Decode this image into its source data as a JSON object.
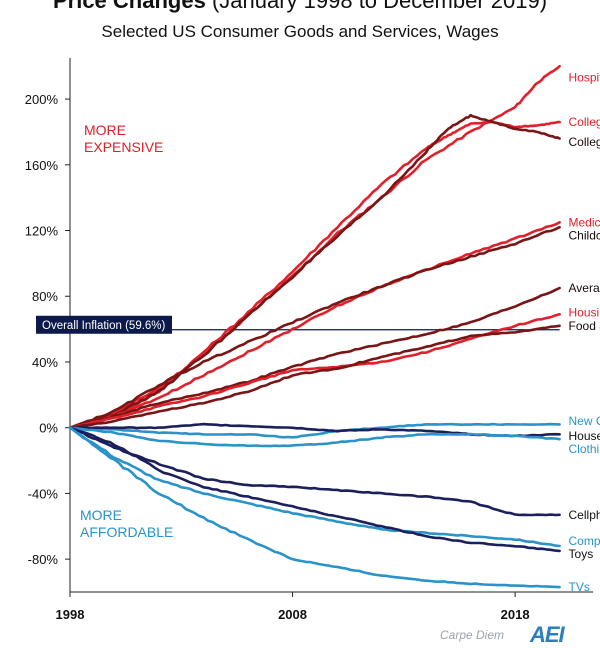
{
  "header": {
    "title_main": "Price Changes",
    "title_paren": "(January 1998 to December 2019)",
    "subtitle": "Selected US Consumer Goods and Services, Wages"
  },
  "credit": {
    "author": "Carpe Diem",
    "logo": "AEI"
  },
  "colors": {
    "red": "#e0202a",
    "darkred": "#7a1515",
    "navy": "#1b1f5c",
    "blue": "#2a93c9",
    "inflation_box": "#0b1a4a"
  },
  "chart_data": {
    "type": "line",
    "title": "Price Changes (January 1998 to December 2019)",
    "subtitle": "Selected US Consumer Goods and Services, Wages",
    "xlabel": "",
    "ylabel": "",
    "xlim": [
      1998,
      2021.5
    ],
    "ylim": [
      -100,
      225
    ],
    "x_ticks": [
      1998,
      2008,
      2018
    ],
    "x_tick_labels": [
      "1998",
      "2008",
      "2018"
    ],
    "y_ticks": [
      200,
      160,
      120,
      80,
      40,
      0,
      -40,
      -80
    ],
    "y_tick_labels": [
      "200%",
      "160%",
      "120%",
      "80%",
      "40%",
      "0%",
      "-40%",
      "-80%"
    ],
    "grid": false,
    "legend": "direct labels at line ends",
    "annotations": {
      "more_expensive": [
        "MORE",
        "EXPENSIVE"
      ],
      "more_affordable": [
        "MORE",
        "AFFORDABLE"
      ],
      "inflation_label": "Overall Inflation (59.6%)",
      "inflation_value": 59.6
    },
    "series": [
      {
        "name": "Hospital Services",
        "color": "red",
        "x": [
          1998,
          2000,
          2002,
          2004,
          2006,
          2008,
          2010,
          2012,
          2014,
          2016,
          2018,
          2019,
          2020
        ],
        "values": [
          0,
          9,
          24,
          45,
          68,
          92,
          118,
          140,
          163,
          180,
          195,
          210,
          220
        ]
      },
      {
        "name": "College Tuition and Fees",
        "color": "red",
        "x": [
          1998,
          2000,
          2002,
          2004,
          2006,
          2008,
          2010,
          2012,
          2014,
          2015,
          2016,
          2017,
          2018,
          2019,
          2020
        ],
        "values": [
          0,
          7,
          22,
          46,
          70,
          95,
          122,
          148,
          170,
          178,
          185,
          186,
          183,
          184,
          186
        ]
      },
      {
        "name": "College Textbooks",
        "color": "darkred",
        "x": [
          1998,
          2000,
          2002,
          2004,
          2006,
          2008,
          2010,
          2012,
          2014,
          2015,
          2016,
          2017,
          2018,
          2019,
          2020
        ],
        "values": [
          0,
          8,
          22,
          44,
          68,
          92,
          116,
          140,
          168,
          182,
          190,
          186,
          182,
          180,
          176
        ]
      },
      {
        "name": "Medical Care Services",
        "color": "red",
        "x": [
          1998,
          2000,
          2002,
          2004,
          2006,
          2008,
          2010,
          2012,
          2014,
          2016,
          2018,
          2020
        ],
        "values": [
          0,
          7,
          18,
          32,
          46,
          60,
          74,
          86,
          96,
          106,
          115,
          125
        ]
      },
      {
        "name": "Childcare and Nursery School",
        "color": "darkred",
        "x": [
          1998,
          2000,
          2002,
          2004,
          2006,
          2008,
          2010,
          2012,
          2014,
          2016,
          2018,
          2020
        ],
        "values": [
          0,
          10,
          26,
          40,
          52,
          64,
          76,
          86,
          96,
          104,
          112,
          122
        ]
      },
      {
        "name": "Average Hourly Wages",
        "color": "darkred",
        "x": [
          1998,
          2000,
          2002,
          2004,
          2006,
          2008,
          2010,
          2012,
          2014,
          2016,
          2018,
          2020
        ],
        "values": [
          0,
          7,
          15,
          21,
          28,
          37,
          45,
          51,
          57,
          64,
          74,
          85
        ]
      },
      {
        "name": "Housing",
        "color": "red",
        "x": [
          1998,
          2000,
          2002,
          2004,
          2006,
          2008,
          2010,
          2012,
          2014,
          2016,
          2018,
          2020
        ],
        "values": [
          0,
          6,
          13,
          19,
          27,
          35,
          37,
          40,
          46,
          54,
          62,
          69
        ]
      },
      {
        "name": "Food and Beverages",
        "color": "darkred",
        "x": [
          1998,
          2000,
          2002,
          2004,
          2006,
          2008,
          2010,
          2012,
          2014,
          2016,
          2018,
          2020
        ],
        "values": [
          0,
          4,
          10,
          15,
          22,
          32,
          36,
          43,
          49,
          56,
          58,
          62
        ]
      },
      {
        "name": "New Cars",
        "color": "blue",
        "x": [
          1998,
          2000,
          2002,
          2004,
          2006,
          2008,
          2010,
          2012,
          2014,
          2016,
          2018,
          2020
        ],
        "values": [
          0,
          -1,
          -3,
          -4,
          -4,
          -6,
          -2,
          0,
          2,
          2,
          2,
          2
        ]
      },
      {
        "name": "Household Furnishings",
        "color": "navy",
        "x": [
          1998,
          2000,
          2002,
          2004,
          2006,
          2008,
          2010,
          2012,
          2014,
          2016,
          2018,
          2020
        ],
        "values": [
          0,
          0,
          0,
          2,
          1,
          0,
          -2,
          -1,
          -2,
          -4,
          -5,
          -4
        ]
      },
      {
        "name": "Clothing",
        "color": "blue",
        "x": [
          1998,
          2000,
          2002,
          2004,
          2006,
          2008,
          2010,
          2012,
          2014,
          2016,
          2018,
          2020
        ],
        "values": [
          0,
          -3,
          -8,
          -10,
          -11,
          -11,
          -9,
          -6,
          -4,
          -4,
          -5,
          -7
        ]
      },
      {
        "name": "Cellphone Services",
        "color": "navy",
        "x": [
          1998,
          2000,
          2002,
          2004,
          2006,
          2008,
          2010,
          2012,
          2014,
          2016,
          2018,
          2020
        ],
        "values": [
          0,
          -12,
          -22,
          -31,
          -35,
          -36,
          -38,
          -40,
          -42,
          -45,
          -53,
          -53
        ]
      },
      {
        "name": "Computer Software",
        "color": "blue",
        "x": [
          1998,
          2000,
          2002,
          2004,
          2006,
          2008,
          2010,
          2012,
          2014,
          2016,
          2018,
          2020
        ],
        "values": [
          0,
          -18,
          -32,
          -40,
          -46,
          -52,
          -57,
          -62,
          -64,
          -66,
          -68,
          -72
        ]
      },
      {
        "name": "Toys",
        "color": "navy",
        "x": [
          1998,
          2000,
          2002,
          2004,
          2006,
          2008,
          2010,
          2012,
          2014,
          2016,
          2018,
          2020
        ],
        "values": [
          0,
          -10,
          -26,
          -36,
          -42,
          -48,
          -54,
          -60,
          -66,
          -70,
          -72,
          -75
        ]
      },
      {
        "name": "TVs",
        "color": "blue",
        "x": [
          1998,
          2000,
          2002,
          2004,
          2006,
          2008,
          2010,
          2012,
          2014,
          2016,
          2018,
          2020
        ],
        "values": [
          0,
          -20,
          -40,
          -55,
          -68,
          -80,
          -85,
          -90,
          -93,
          -95,
          -96,
          -97
        ]
      }
    ]
  }
}
